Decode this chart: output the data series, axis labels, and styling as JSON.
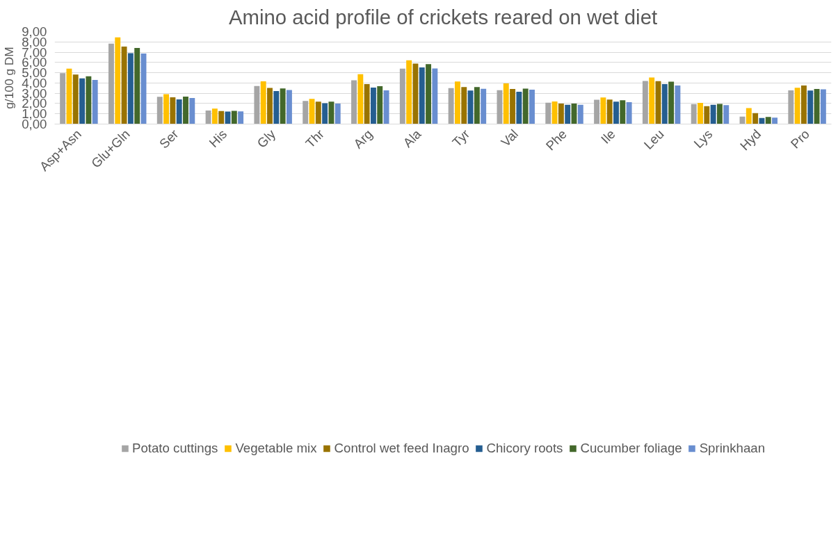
{
  "chart_data": {
    "type": "bar",
    "title": "Amino acid profile of crickets reared on wet diet",
    "ylabel": "g/100 g DM",
    "categories": [
      "Asp+Asn",
      "Glu+Gln",
      "Ser",
      "His",
      "Gly",
      "Thr",
      "Arg",
      "Ala",
      "Tyr",
      "Val",
      "Phe",
      "Ile",
      "Leu",
      "Lys",
      "Hyd",
      "Pro"
    ],
    "series": [
      {
        "name": "Potato cuttings",
        "color": "#a5a5a5",
        "values": [
          4.95,
          7.83,
          2.65,
          1.32,
          3.71,
          2.25,
          4.27,
          5.39,
          3.5,
          3.3,
          2.08,
          2.36,
          4.2,
          1.94,
          0.72,
          3.29
        ]
      },
      {
        "name": "Vegetable mix",
        "color": "#ffc000",
        "values": [
          5.4,
          8.45,
          2.91,
          1.5,
          4.17,
          2.46,
          4.85,
          6.21,
          4.15,
          3.96,
          2.2,
          2.58,
          4.53,
          2.07,
          1.55,
          3.53
        ]
      },
      {
        "name": "Control wet feed Inagro",
        "color": "#997300",
        "values": [
          4.82,
          7.55,
          2.6,
          1.27,
          3.52,
          2.18,
          3.89,
          5.88,
          3.61,
          3.41,
          2.0,
          2.38,
          4.18,
          1.74,
          1.07,
          3.76
        ]
      },
      {
        "name": "Chicory roots",
        "color": "#255e91",
        "values": [
          4.45,
          6.9,
          2.41,
          1.21,
          3.22,
          2.03,
          3.56,
          5.52,
          3.27,
          3.15,
          1.87,
          2.19,
          3.89,
          1.88,
          0.6,
          3.27
        ]
      },
      {
        "name": "Cucumber foliage",
        "color": "#43682b",
        "values": [
          4.66,
          7.41,
          2.67,
          1.28,
          3.46,
          2.18,
          3.68,
          5.83,
          3.61,
          3.45,
          2.0,
          2.31,
          4.12,
          1.97,
          0.7,
          3.41
        ]
      },
      {
        "name": "Sprinkhaan",
        "color": "#698ed0",
        "values": [
          4.3,
          6.86,
          2.53,
          1.24,
          3.31,
          2.0,
          3.29,
          5.42,
          3.44,
          3.35,
          1.87,
          2.13,
          3.75,
          1.85,
          0.62,
          3.38
        ]
      }
    ],
    "ylim": [
      0,
      9
    ],
    "yticks": [
      {
        "value": 0,
        "label": "0,00"
      },
      {
        "value": 1,
        "label": "1,00"
      },
      {
        "value": 2,
        "label": "2,00"
      },
      {
        "value": 3,
        "label": "3,00"
      },
      {
        "value": 4,
        "label": "4,00"
      },
      {
        "value": 5,
        "label": "5,00"
      },
      {
        "value": 6,
        "label": "6,00"
      },
      {
        "value": 7,
        "label": "7,00"
      },
      {
        "value": 8,
        "label": "8,00"
      },
      {
        "value": 9,
        "label": "9,00"
      }
    ],
    "grid": "y",
    "legend": "bottom"
  }
}
